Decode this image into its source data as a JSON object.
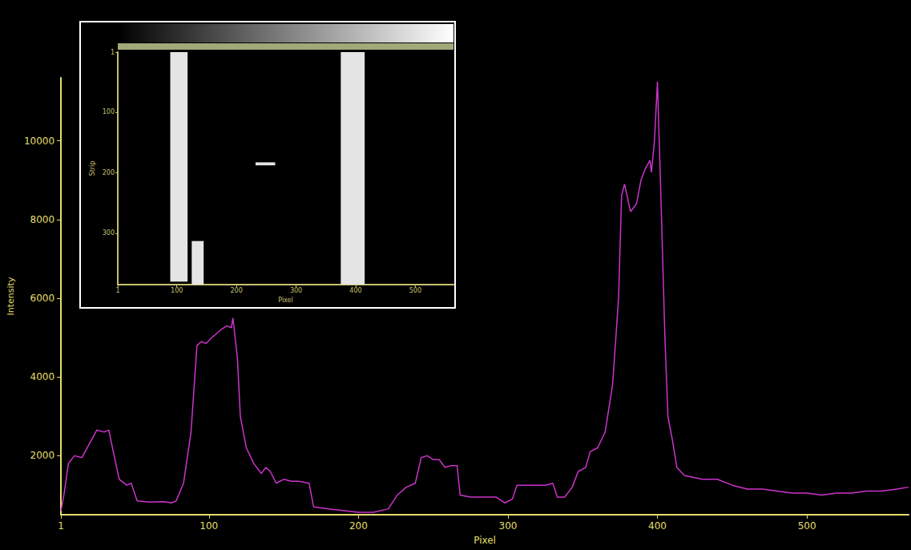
{
  "chart_data": [
    {
      "type": "line",
      "x_label": "Pixel",
      "y_label": "Intensity",
      "color": "#cc33cc",
      "grid": false,
      "xlim": [
        1,
        568
      ],
      "ylim": [
        500,
        11600
      ],
      "xticks": [
        1,
        100,
        200,
        300,
        400,
        500
      ],
      "yticks": [
        2000,
        4000,
        6000,
        8000,
        10000
      ],
      "x": [
        1,
        3,
        6,
        10,
        15,
        20,
        25,
        30,
        33,
        36,
        40,
        45,
        48,
        52,
        60,
        70,
        75,
        78,
        83,
        88,
        92,
        95,
        98,
        102,
        108,
        112,
        115,
        116,
        119,
        121,
        125,
        130,
        135,
        138,
        141,
        145,
        150,
        155,
        160,
        167,
        170,
        180,
        200,
        210,
        220,
        226,
        232,
        238,
        242,
        246,
        250,
        254,
        258,
        262,
        266,
        268,
        275,
        285,
        292,
        298,
        303,
        306,
        315,
        325,
        330,
        333,
        338,
        343,
        347,
        352,
        355,
        360,
        365,
        370,
        374,
        376,
        378,
        382,
        386,
        389,
        392,
        395,
        396,
        398,
        400,
        402,
        405,
        407,
        410,
        413,
        418,
        430,
        440,
        450,
        460,
        470,
        480,
        490,
        500,
        510,
        520,
        530,
        540,
        550,
        560,
        568
      ],
      "values": [
        600,
        1000,
        1800,
        2000,
        1950,
        2300,
        2650,
        2600,
        2650,
        2100,
        1400,
        1250,
        1300,
        850,
        820,
        830,
        800,
        850,
        1300,
        2600,
        4800,
        4900,
        4850,
        5000,
        5200,
        5300,
        5250,
        5500,
        4500,
        3000,
        2200,
        1800,
        1550,
        1700,
        1600,
        1300,
        1400,
        1350,
        1350,
        1300,
        700,
        650,
        560,
        560,
        650,
        1000,
        1200,
        1300,
        1950,
        2000,
        1900,
        1900,
        1700,
        1750,
        1750,
        1000,
        950,
        950,
        950,
        800,
        900,
        1250,
        1250,
        1250,
        1300,
        950,
        950,
        1200,
        1600,
        1700,
        2100,
        2200,
        2600,
        3800,
        6000,
        8600,
        8900,
        8200,
        8400,
        9000,
        9300,
        9500,
        9200,
        10000,
        11500,
        9000,
        5000,
        3000,
        2400,
        1700,
        1500,
        1400,
        1400,
        1250,
        1150,
        1150,
        1100,
        1050,
        1050,
        1000,
        1050,
        1050,
        1100,
        1100,
        1150,
        1200
      ]
    },
    {
      "type": "image",
      "x_label": "Pixel",
      "y_label": "Strip",
      "color": "#e4e4e4",
      "xlim": [
        1,
        564
      ],
      "ylim": [
        385,
        1
      ],
      "xticks": [
        1,
        100,
        200,
        300,
        400,
        500
      ],
      "yticks": [
        1,
        100,
        200,
        300
      ],
      "bands": [
        {
          "x": [
            89,
            118
          ],
          "y": [
            1,
            380
          ]
        },
        {
          "x": [
            125,
            145
          ],
          "y": [
            313,
            385
          ]
        },
        {
          "x": [
            375,
            415
          ],
          "y": [
            1,
            385
          ]
        },
        {
          "x": [
            232,
            265
          ],
          "y": [
            183,
            188
          ]
        }
      ]
    }
  ]
}
